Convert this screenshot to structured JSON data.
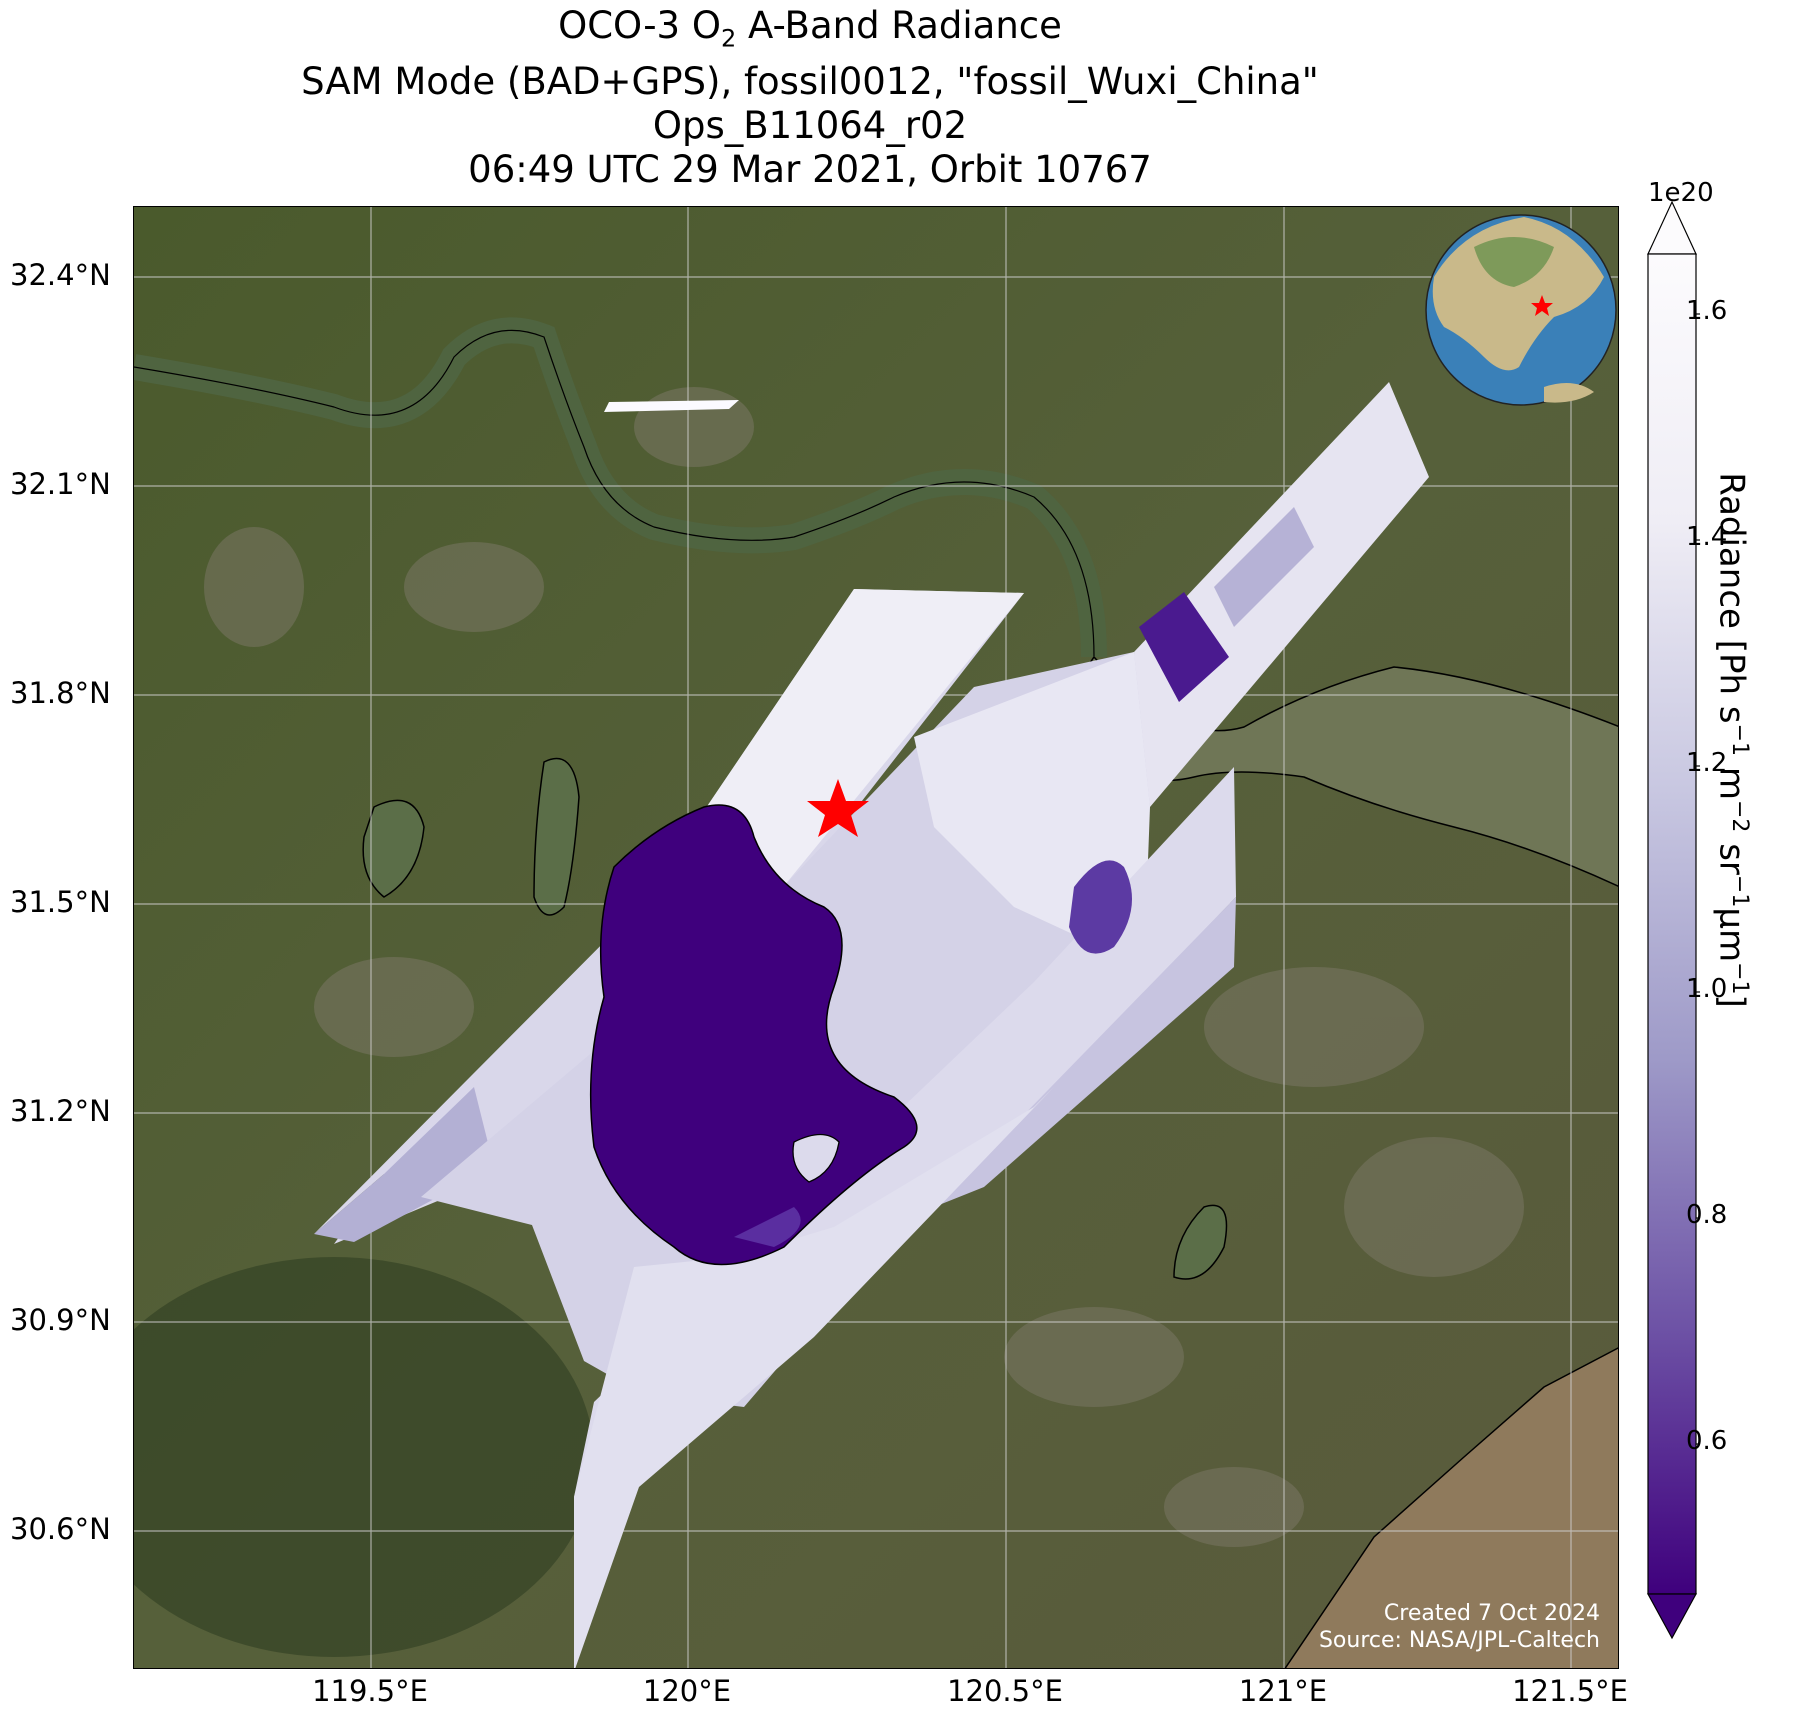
{
  "title": {
    "line1_prefix": "OCO-3 O",
    "line1_sub": "2",
    "line1_suffix": " A-Band Radiance",
    "line2": "SAM Mode (BAD+GPS), fossil0012, \"fossil_Wuxi_China\"",
    "line3": "Ops_B11064_r02",
    "line4": "06:49 UTC 29 Mar 2021, Orbit 10767"
  },
  "axes": {
    "lat_ticks": [
      "32.4°N",
      "32.1°N",
      "31.8°N",
      "31.5°N",
      "31.2°N",
      "30.9°N",
      "30.6°N"
    ],
    "lon_ticks": [
      "119.5°E",
      "120°E",
      "120.5°E",
      "121°E",
      "121.5°E"
    ],
    "lat_range": [
      30.42,
      32.5
    ],
    "lon_range": [
      119.12,
      121.62
    ]
  },
  "target": {
    "lat": 31.57,
    "lon": 120.29,
    "marker": "red-star",
    "color": "#ff0000"
  },
  "credit": {
    "line1": "Created 7 Oct 2024",
    "line2": "Source: NASA/JPL-Caltech"
  },
  "colorbar": {
    "exponent": "1e20",
    "ticks": [
      "1.6",
      "1.4",
      "1.2",
      "1.0",
      "0.8",
      "0.6"
    ],
    "range": [
      0.46,
      1.65
    ],
    "colormap": "Purples_r",
    "label_prefix": "Radiance [Ph s",
    "label_sup1": "−1",
    "label_mid1": " m",
    "label_sup2": "−2",
    "label_mid2": " sr",
    "label_sup3": "−1",
    "label_mid3": "μm",
    "label_sup4": "−1",
    "label_suffix": "]"
  },
  "colors": {
    "land": "#4d5a30",
    "water": "#5b6e48",
    "sea": "#8c7a5a",
    "radiance_low": "#3f007d",
    "radiance_high": "#fcfbfd"
  },
  "inset_globe": {
    "marker": "red-star"
  }
}
